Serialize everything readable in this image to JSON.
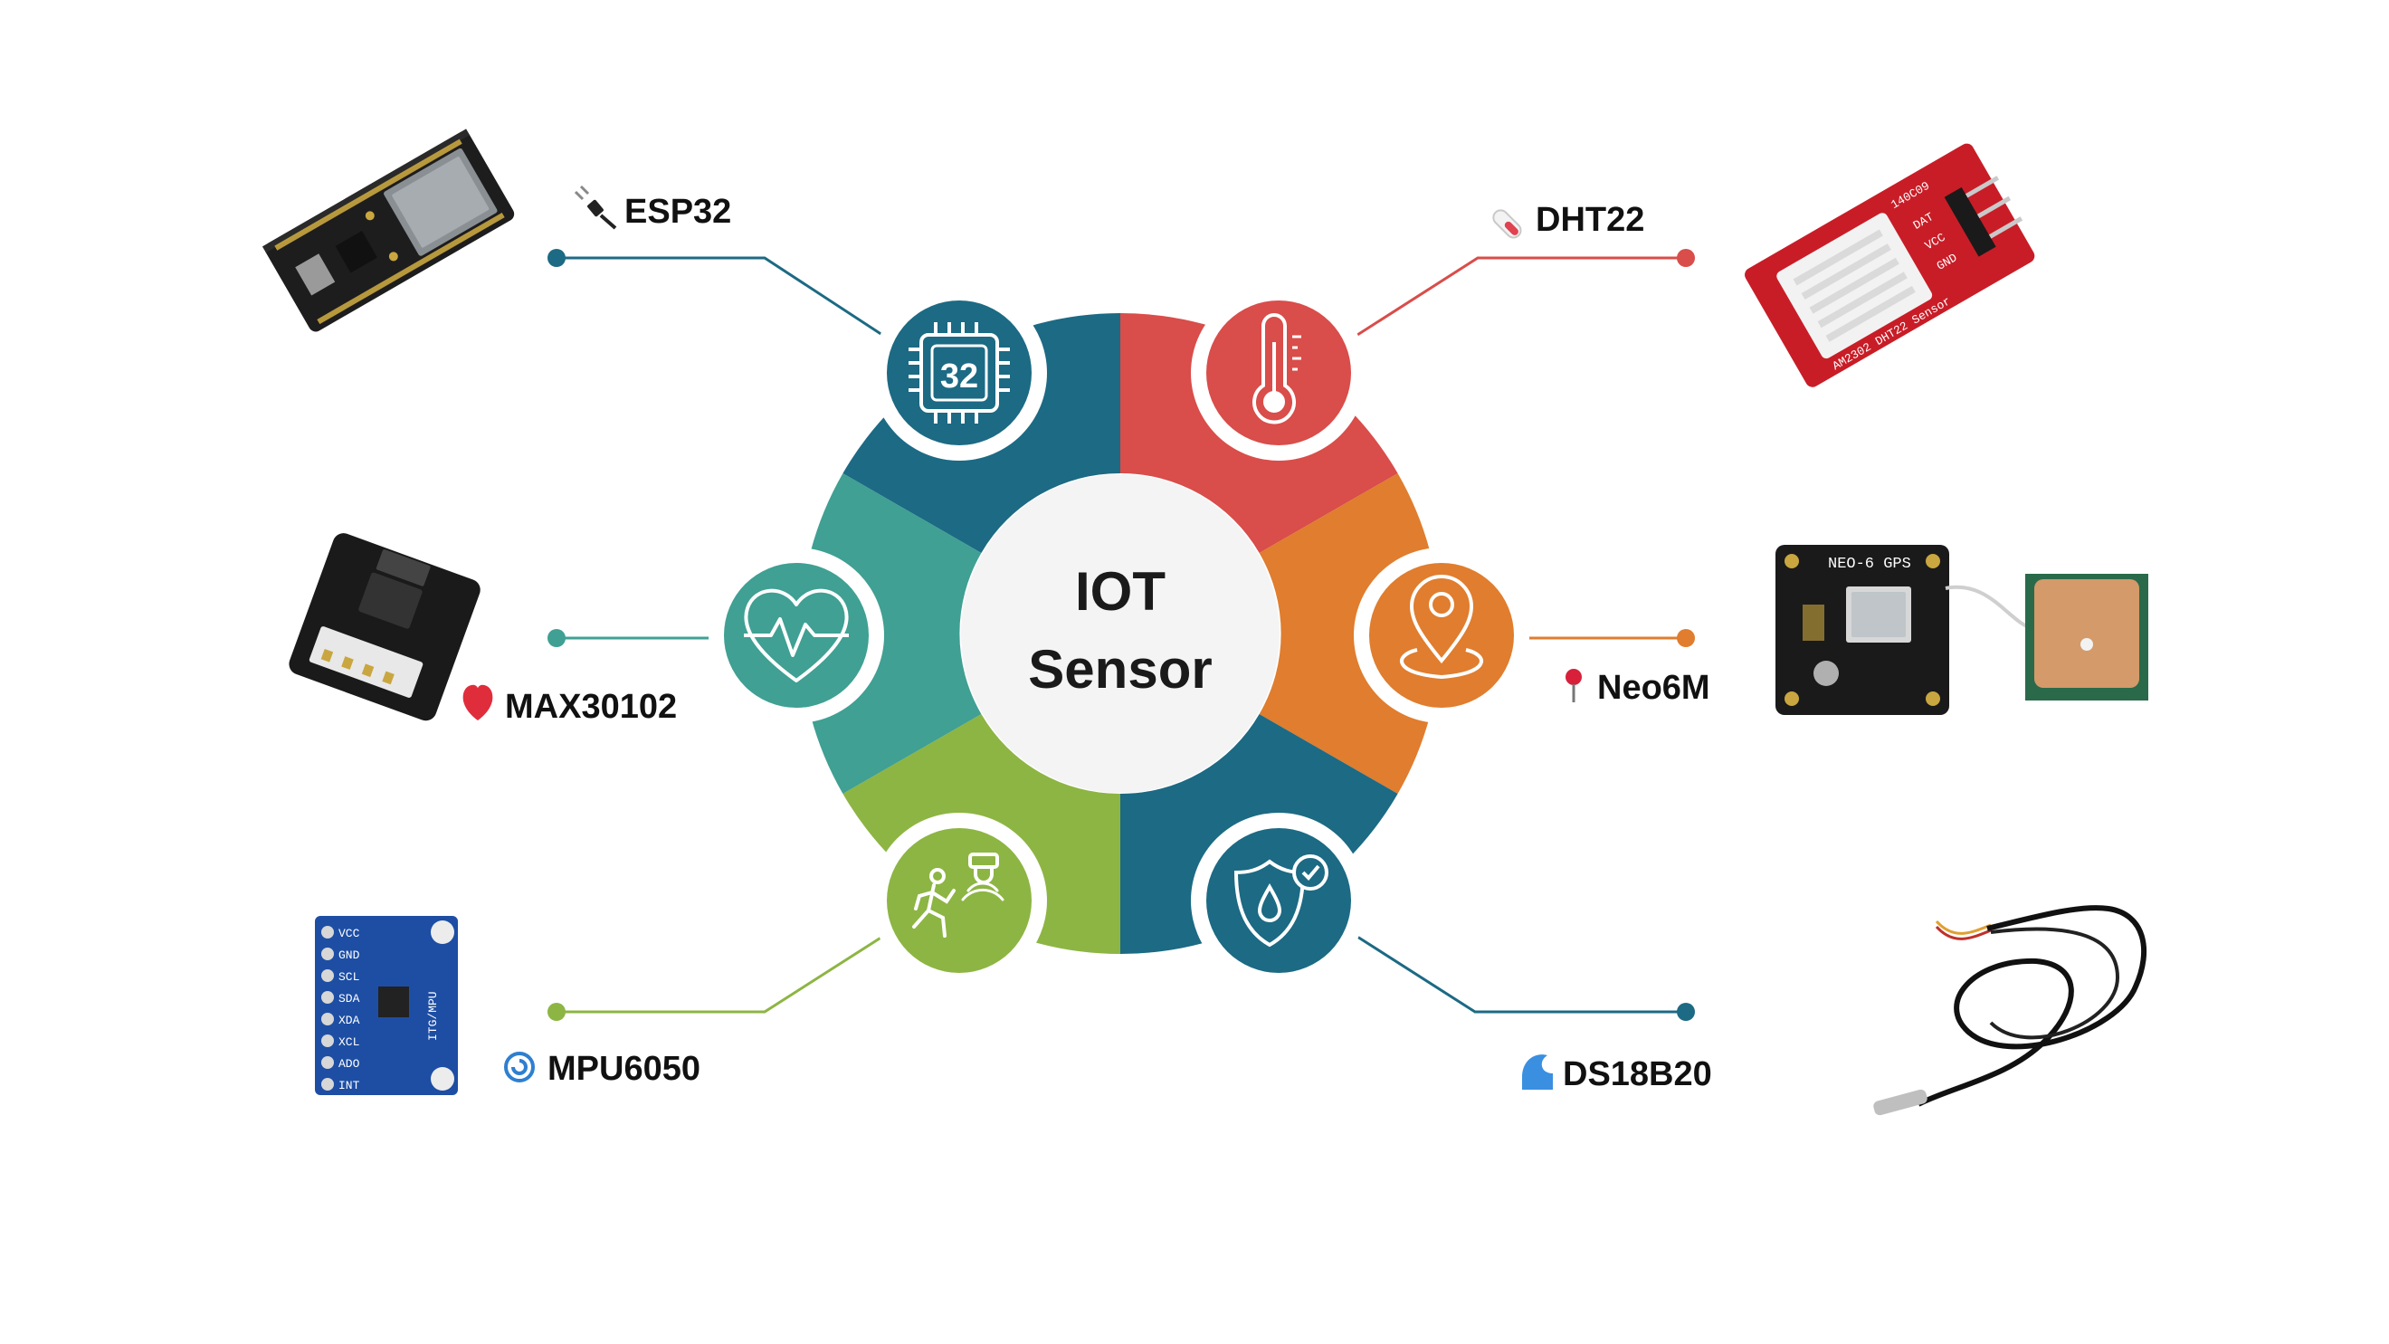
{
  "center": {
    "line1": "IOT",
    "line2": "Sensor"
  },
  "chip_icon_text": "32",
  "sensors": [
    {
      "key": "esp32",
      "name": "ESP32",
      "side": "left",
      "color": "#1c6a84",
      "icon": "chip-icon",
      "emoji": "plug-icon"
    },
    {
      "key": "dht22",
      "name": "DHT22",
      "side": "right",
      "color": "#d94d4a",
      "icon": "thermometer-icon",
      "emoji": "thermometer-emoji-icon"
    },
    {
      "key": "neo6m",
      "name": "Neo6M",
      "side": "right",
      "color": "#e07d2e",
      "icon": "location-pin-icon",
      "emoji": "pushpin-icon"
    },
    {
      "key": "ds18b20",
      "name": "DS18B20",
      "side": "right",
      "color": "#1c6a84",
      "icon": "shield-drop-icon",
      "emoji": "wave-icon"
    },
    {
      "key": "mpu6050",
      "name": "MPU6050",
      "side": "left",
      "color": "#8db543",
      "icon": "motion-sensor-icon",
      "emoji": "cyclone-icon"
    },
    {
      "key": "max30102",
      "name": "MAX30102",
      "side": "left",
      "color": "#3fa093",
      "icon": "heartbeat-icon",
      "emoji": "heart-icon"
    }
  ],
  "pcb_labels": {
    "dht22_board": "AM2302 DHT22 Sensor",
    "dht22_pins": [
      "DAT",
      "VCC",
      "GND"
    ],
    "dht22_code": "140C09",
    "neo6m_board": "NEO-6 GPS",
    "mpu_board": "ITG/MPU",
    "mpu_pins": [
      "VCC",
      "GND",
      "SCL",
      "SDA",
      "XDA",
      "XCL",
      "ADO",
      "INT"
    ]
  }
}
